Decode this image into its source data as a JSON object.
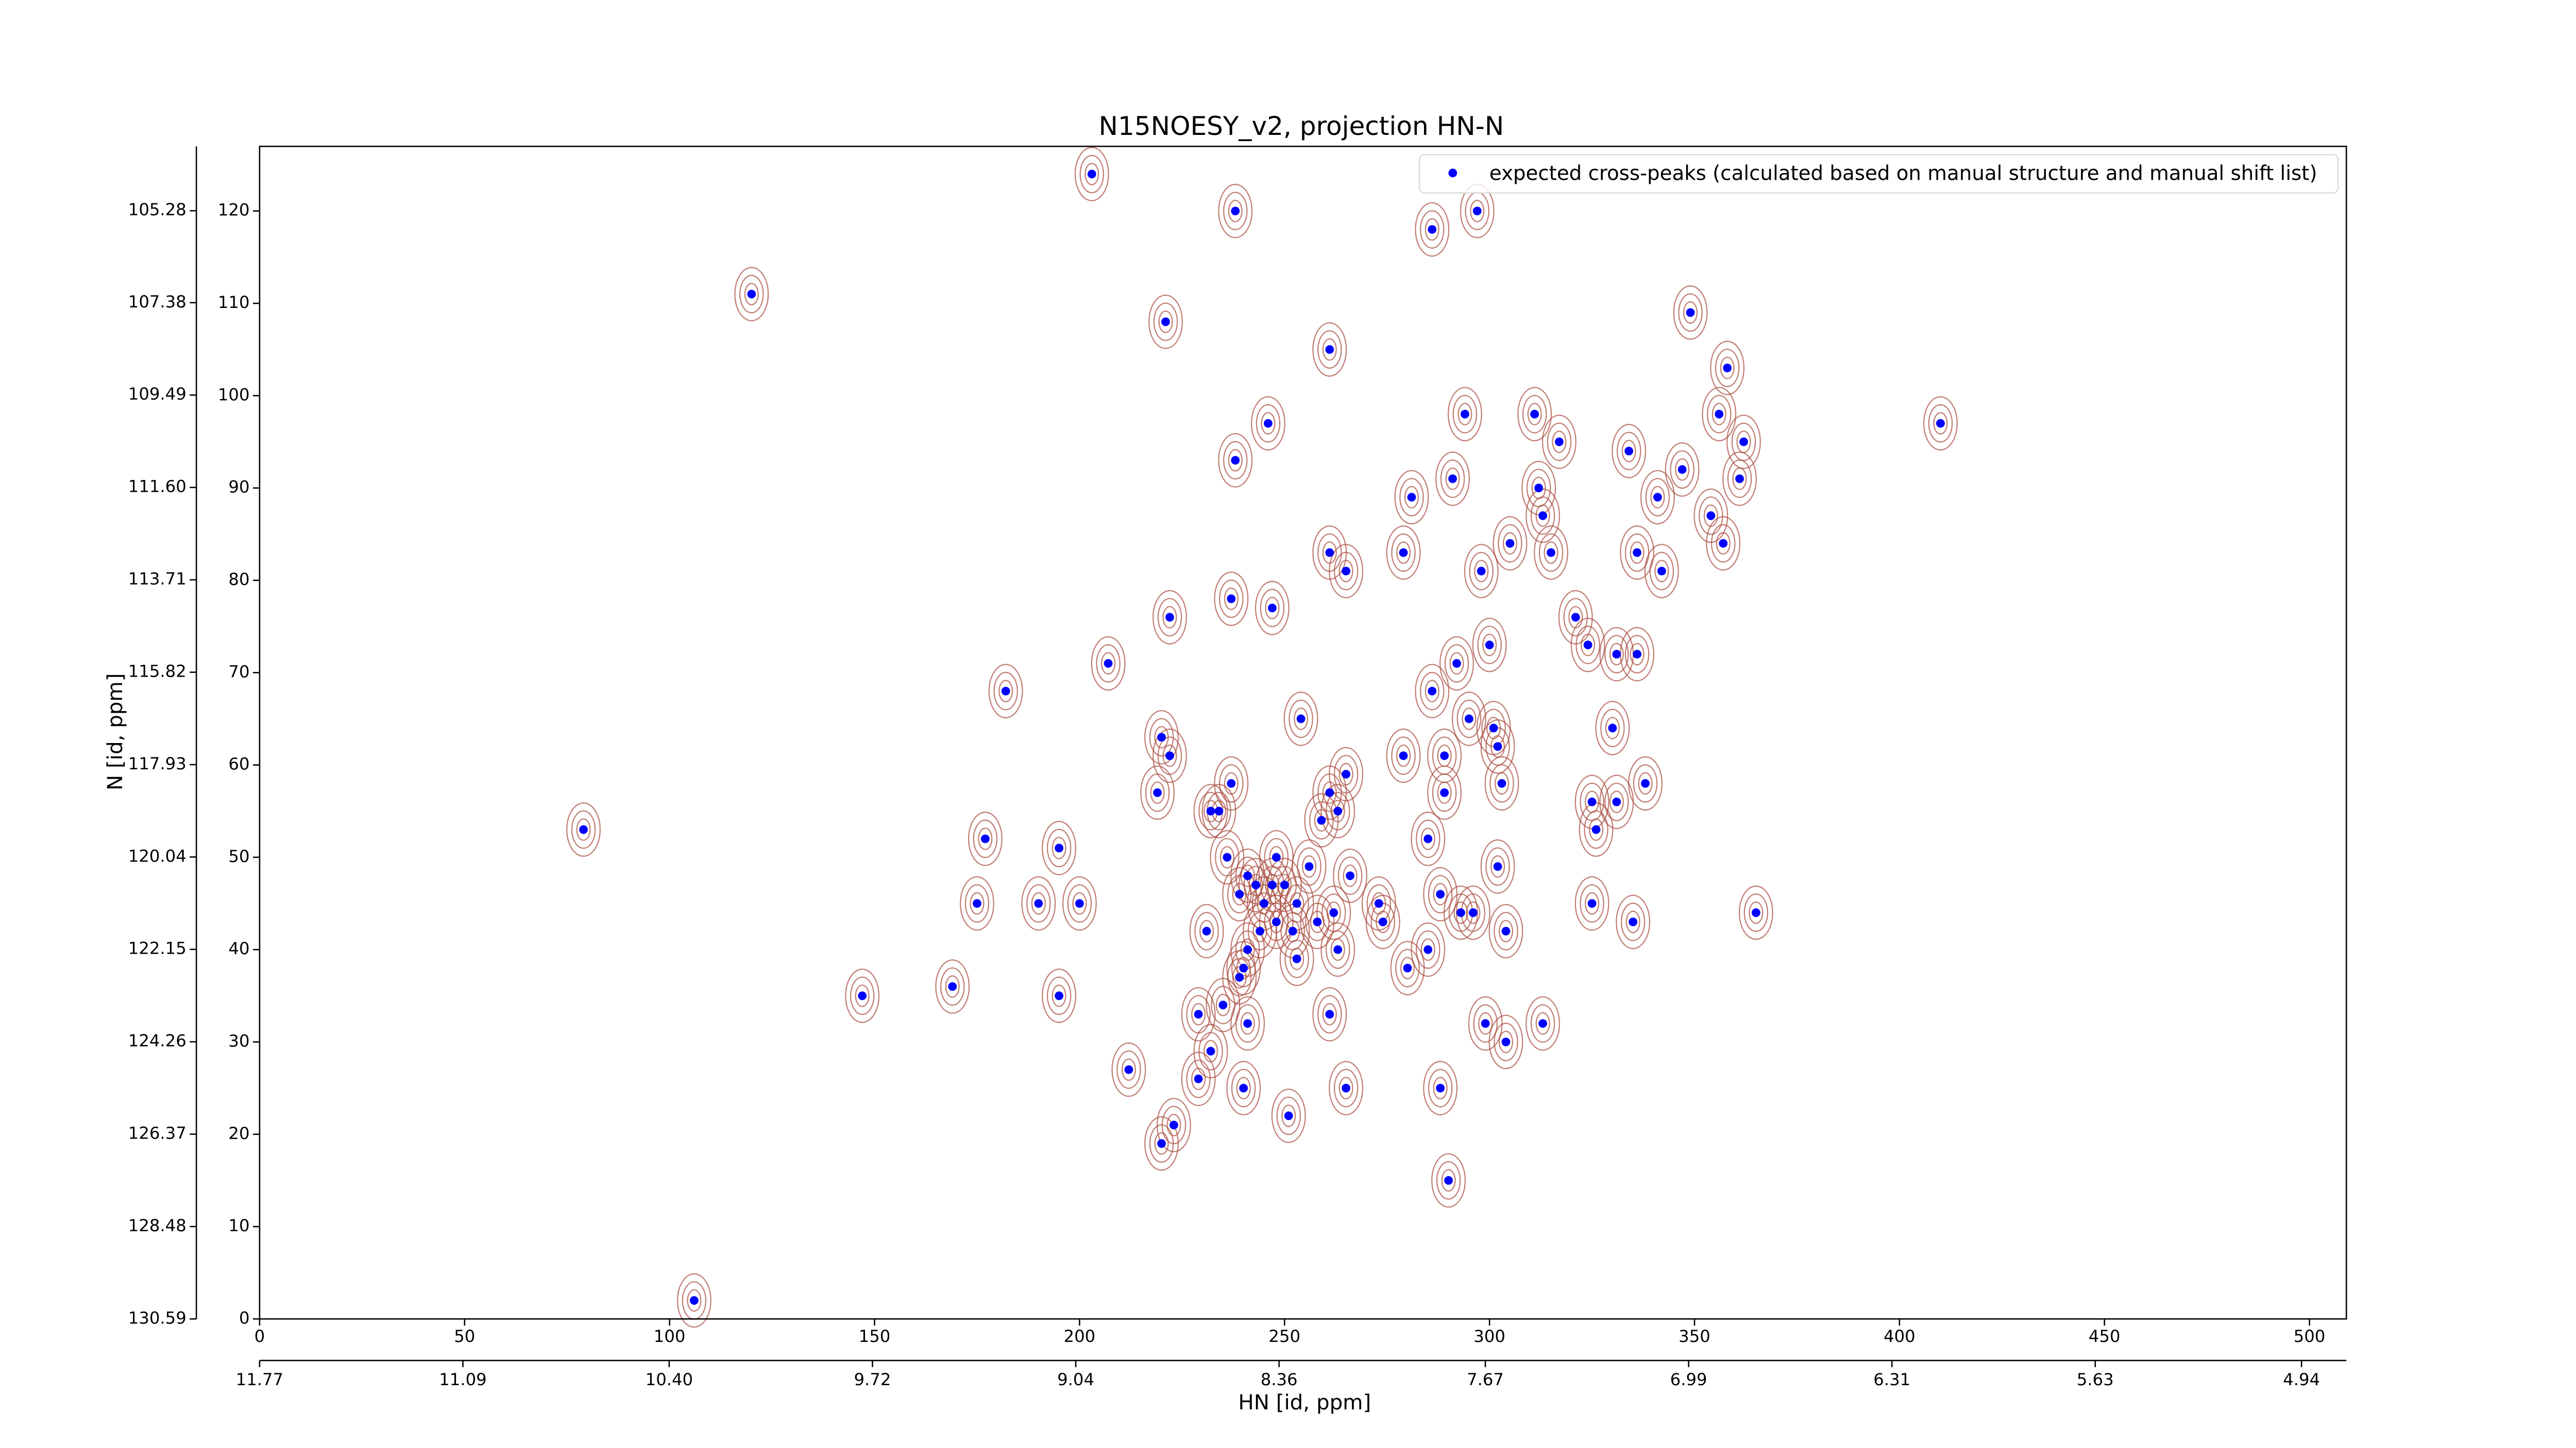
{
  "chart_data": {
    "type": "scatter",
    "title": "N15NOESY_v2, projection HN-N",
    "xlabel": "HN [id, ppm]",
    "ylabel": "N [id, ppm]",
    "xlim": [
      0,
      509
    ],
    "xticks": [
      0,
      50,
      100,
      150,
      200,
      250,
      300,
      350,
      400,
      450,
      500
    ],
    "ylim": [
      0,
      127
    ],
    "yticks": [
      0,
      10,
      20,
      30,
      40,
      50,
      60,
      70,
      80,
      90,
      100,
      110,
      120
    ],
    "x2lim": [
      11.77,
      4.79
    ],
    "x2ticks": [
      11.77,
      11.09,
      {
        "value": 10.4,
        "label": "10.40"
      },
      9.72,
      9.04,
      8.36,
      7.67,
      6.99,
      6.31,
      5.63,
      4.94
    ],
    "y2lim": [
      130.59,
      103.81
    ],
    "y2ticks": [
      105.28,
      107.38,
      109.49,
      {
        "value": 111.6,
        "label": "111.60"
      },
      113.71,
      115.82,
      117.93,
      120.04,
      122.15,
      124.26,
      126.37,
      128.48,
      130.59
    ],
    "legend": "upper right",
    "contour_color": "#a8493c",
    "series": [
      {
        "name": "expected cross-peaks (calculated based on manual structure and manual shift list)",
        "color": "#0000ff",
        "x": [
          203,
          238,
          297,
          286,
          120,
          221,
          261,
          349,
          358,
          356,
          362,
          361,
          294,
          246,
          410,
          311,
          317,
          238,
          281,
          291,
          312,
          334,
          341,
          347,
          354,
          357,
          313,
          305,
          298,
          279,
          261,
          265,
          315,
          336,
          342,
          237,
          247,
          222,
          207,
          182,
          292,
          300,
          321,
          324,
          331,
          336,
          286,
          295,
          301,
          254,
          220,
          222,
          219,
          237,
          232,
          234,
          261,
          263,
          259,
          265,
          279,
          289,
          289,
          302,
          303,
          330,
          338,
          325,
          331,
          326,
          195,
          177,
          79,
          236,
          256,
          248,
          241,
          243,
          247,
          250,
          239,
          245,
          253,
          266,
          273,
          285,
          288,
          302,
          274,
          262,
          248,
          244,
          252,
          258,
          263,
          241,
          240,
          231,
          285,
          293,
          304,
          325,
          335,
          365,
          175,
          190,
          200,
          253,
          280,
          296,
          239,
          235,
          169,
          147,
          195,
          229,
          241,
          261,
          299,
          313,
          304,
          232,
          212,
          229,
          240,
          265,
          288,
          251,
          223,
          220,
          290,
          106
        ],
        "values": [
          124,
          120,
          120,
          118,
          111,
          108,
          105,
          109,
          103,
          98,
          95,
          91,
          98,
          97,
          97,
          98,
          95,
          93,
          89,
          91,
          90,
          94,
          89,
          92,
          87,
          84,
          87,
          84,
          81,
          83,
          83,
          81,
          83,
          83,
          81,
          78,
          77,
          76,
          71,
          68,
          71,
          73,
          76,
          73,
          72,
          72,
          68,
          65,
          64,
          65,
          63,
          61,
          57,
          58,
          55,
          55,
          57,
          55,
          54,
          59,
          61,
          61,
          57,
          62,
          58,
          64,
          58,
          56,
          56,
          53,
          51,
          52,
          53,
          50,
          49,
          50,
          48,
          47,
          47,
          47,
          46,
          45,
          45,
          48,
          45,
          52,
          46,
          49,
          43,
          44,
          43,
          42,
          42,
          43,
          40,
          40,
          38,
          42,
          40,
          44,
          42,
          45,
          43,
          44,
          45,
          45,
          45,
          39,
          38,
          44,
          37,
          34,
          36,
          35,
          35,
          33,
          32,
          33,
          32,
          32,
          30,
          29,
          27,
          26,
          25,
          25,
          25,
          22,
          21,
          19,
          15,
          2
        ]
      }
    ]
  }
}
